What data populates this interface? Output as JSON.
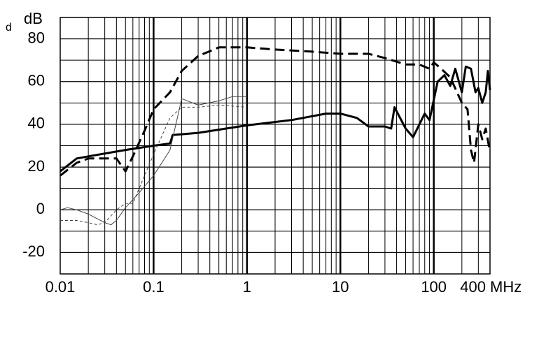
{
  "chart_data": {
    "type": "line",
    "y_label": "dB",
    "annotation": "d",
    "x_label": "MHz",
    "xscale": "log",
    "xlim": [
      0.01,
      400
    ],
    "xticks": [
      0.01,
      0.1,
      1,
      10,
      100,
      400
    ],
    "ylim": [
      -30,
      90
    ],
    "yticks": [
      -20,
      0,
      20,
      40,
      60,
      80
    ],
    "grid": true,
    "series": [
      {
        "color": "#000000",
        "width": 3,
        "dash": "none",
        "x": [
          0.01,
          0.015,
          0.02,
          0.05,
          0.1,
          0.15,
          0.16,
          0.3,
          1,
          3,
          7,
          10,
          15,
          20,
          30,
          35,
          38,
          50,
          60,
          80,
          90,
          110,
          130,
          150,
          170,
          200,
          220,
          250,
          280,
          300,
          330,
          360,
          380,
          400
        ],
        "values": [
          18,
          24,
          25,
          28,
          30,
          31,
          35,
          36,
          39.5,
          42,
          45,
          45,
          43,
          39,
          39,
          38,
          48,
          38,
          34,
          45,
          42,
          60,
          63,
          58,
          66,
          55,
          67,
          66,
          55,
          57,
          50,
          55,
          65,
          56
        ]
      },
      {
        "color": "#000000",
        "width": 3,
        "dash": "14,7",
        "x": [
          0.01,
          0.015,
          0.02,
          0.03,
          0.04,
          0.05,
          0.06,
          0.08,
          0.1,
          0.15,
          0.2,
          0.3,
          0.5,
          1,
          2,
          5,
          10,
          20,
          30,
          50,
          70,
          90,
          100,
          120,
          150,
          200,
          230,
          250,
          270,
          300,
          330,
          360,
          400
        ],
        "values": [
          16,
          22,
          24,
          24,
          24,
          18,
          25,
          37,
          47,
          55,
          65,
          72,
          76,
          76,
          75,
          74,
          73,
          73,
          71,
          68,
          68,
          66,
          69,
          66,
          62,
          50,
          47,
          28,
          22,
          40,
          33,
          38,
          27
        ]
      },
      {
        "color": "#444444",
        "width": 1,
        "dash": "none",
        "x": [
          0.01,
          0.012,
          0.015,
          0.02,
          0.03,
          0.035,
          0.04,
          0.05,
          0.07,
          0.1,
          0.15,
          0.2,
          0.3,
          0.5,
          0.7,
          1
        ],
        "values": [
          0,
          1,
          0,
          -2,
          -6,
          -7,
          -5,
          1,
          8,
          16,
          28,
          52,
          49,
          51,
          53,
          53
        ]
      },
      {
        "color": "#444444",
        "width": 1,
        "dash": "4,3",
        "x": [
          0.01,
          0.015,
          0.02,
          0.025,
          0.03,
          0.04,
          0.05,
          0.06,
          0.08,
          0.1,
          0.15,
          0.2,
          0.3,
          0.5,
          1
        ],
        "values": [
          -5,
          -5,
          -6,
          -7,
          -6,
          0,
          3,
          3,
          16,
          26,
          43,
          48,
          48,
          49,
          48
        ]
      }
    ]
  }
}
